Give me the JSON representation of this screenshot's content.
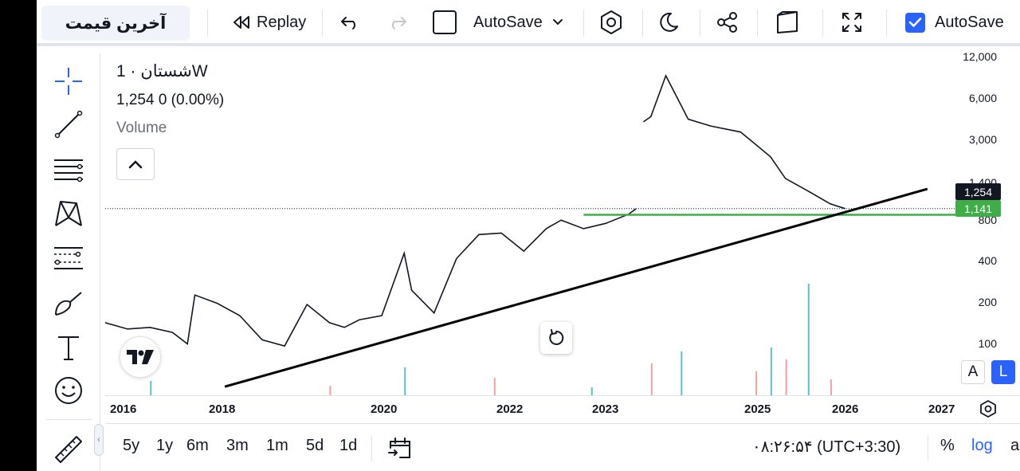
{
  "toolbar": {
    "symbol_button": "آخرین قیمت",
    "replay_label": "Replay",
    "autosave_dropdown_label": "AutoSave",
    "autosave_checkbox_label": "AutoSave"
  },
  "legend": {
    "symbol": "شستان",
    "interval": "1W",
    "price": "1,254",
    "change": "0 (0.00%)",
    "volume_label": "Volume"
  },
  "price_axis": {
    "labels": [
      "12,000",
      "6,000",
      "3,000",
      "1,400",
      "800",
      "400",
      "200",
      "100"
    ],
    "current_price_tag": "1,254",
    "green_line_tag": "1,141",
    "scale_mode": "log"
  },
  "time_axis": {
    "labels": [
      "2016",
      "2018",
      "2020",
      "2022",
      "2023",
      "2025",
      "2026",
      "2027"
    ]
  },
  "chart_data": {
    "type": "line",
    "title": "شستان · 1W",
    "y_scale": "log",
    "ylim": [
      70,
      14000
    ],
    "x_range": [
      2015.9,
      2027.2
    ],
    "last_price": 1254,
    "horizontal_line": 1141,
    "trendline": {
      "x": [
        2017.5,
        2026.9
      ],
      "y": [
        80,
        1700
      ]
    },
    "series": [
      {
        "name": "شستان",
        "x": [
          2015.9,
          2016.2,
          2016.5,
          2016.8,
          2017.0,
          2017.1,
          2017.4,
          2017.7,
          2018.0,
          2018.3,
          2018.6,
          2018.9,
          2019.1,
          2019.3,
          2019.6,
          2019.9,
          2020.0,
          2020.3,
          2020.6,
          2020.9,
          2021.2,
          2021.5,
          2021.8,
          2022.0,
          2022.3,
          2022.6,
          2022.9,
          2023.0,
          2023.1,
          2023.2,
          2023.4,
          2023.7,
          2024.0,
          2024.4,
          2024.8,
          2025.0,
          2025.3,
          2025.6,
          2025.8
        ],
        "y": [
          215,
          195,
          200,
          185,
          155,
          330,
          290,
          240,
          165,
          150,
          285,
          215,
          200,
          225,
          240,
          630,
          355,
          250,
          580,
          840,
          860,
          650,
          920,
          1050,
          920,
          1000,
          1150,
          1250,
          4800,
          5200,
          9800,
          5000,
          4500,
          4100,
          2800,
          2000,
          1650,
          1350,
          1254
        ]
      },
      {
        "name": "Volume",
        "x": [
          2016.5,
          2018.9,
          2019.9,
          2021.1,
          2022.4,
          2023.2,
          2023.6,
          2024.6,
          2024.8,
          2025.0,
          2025.3,
          2025.6
        ],
        "y": [
          18,
          12,
          35,
          22,
          10,
          40,
          55,
          30,
          60,
          45,
          140,
          20
        ]
      }
    ]
  },
  "bottom_bar": {
    "ranges": [
      "5y",
      "1y",
      "6m",
      "3m",
      "1m",
      "5d",
      "1d"
    ],
    "time": "۰۸:۲۶:۵۴ (UTC+3:30)",
    "percent": "%",
    "log": "log",
    "auto": "auto"
  },
  "scale_buttons": {
    "a": "A",
    "l": "L"
  },
  "colors": {
    "accent": "#2962ff",
    "green_line": "#3fae49",
    "price_tag_bg": "#131722",
    "trendline": "#000000",
    "volume_up": "#5ec0c8",
    "volume_down": "#f5a0a0"
  }
}
